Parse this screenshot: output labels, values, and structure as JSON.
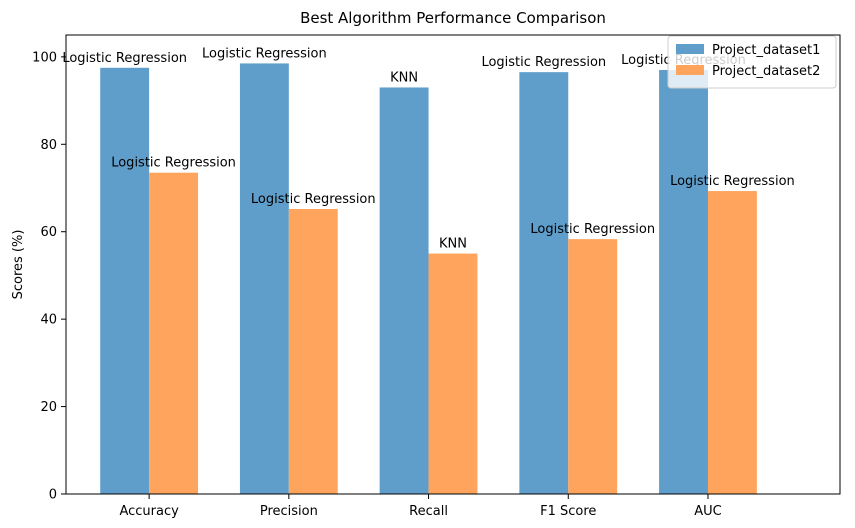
{
  "chart_data": {
    "type": "bar",
    "title": "Best Algorithm Performance Comparison",
    "xlabel": "",
    "ylabel": "Scores (%)",
    "ylim": [
      0,
      105
    ],
    "yticks": [
      0,
      20,
      40,
      60,
      80,
      100
    ],
    "categories": [
      "Accuracy",
      "Precision",
      "Recall",
      "F1 Score",
      "AUC"
    ],
    "series": [
      {
        "name": "Project_dataset1",
        "color": "#5f9ecb",
        "values": [
          97.5,
          98.5,
          93.0,
          96.5,
          97.0
        ],
        "annotations": [
          "Logistic Regression",
          "Logistic Regression",
          "KNN",
          "Logistic Regression",
          "Logistic Regression"
        ]
      },
      {
        "name": "Project_dataset2",
        "color": "#fea45c",
        "values": [
          73.5,
          65.2,
          55.0,
          58.3,
          69.3
        ],
        "annotations": [
          "Logistic Regression",
          "Logistic Regression",
          "KNN",
          "Logistic Regression",
          "Logistic Regression"
        ]
      }
    ],
    "grid": false,
    "legend_position": "top-right"
  }
}
